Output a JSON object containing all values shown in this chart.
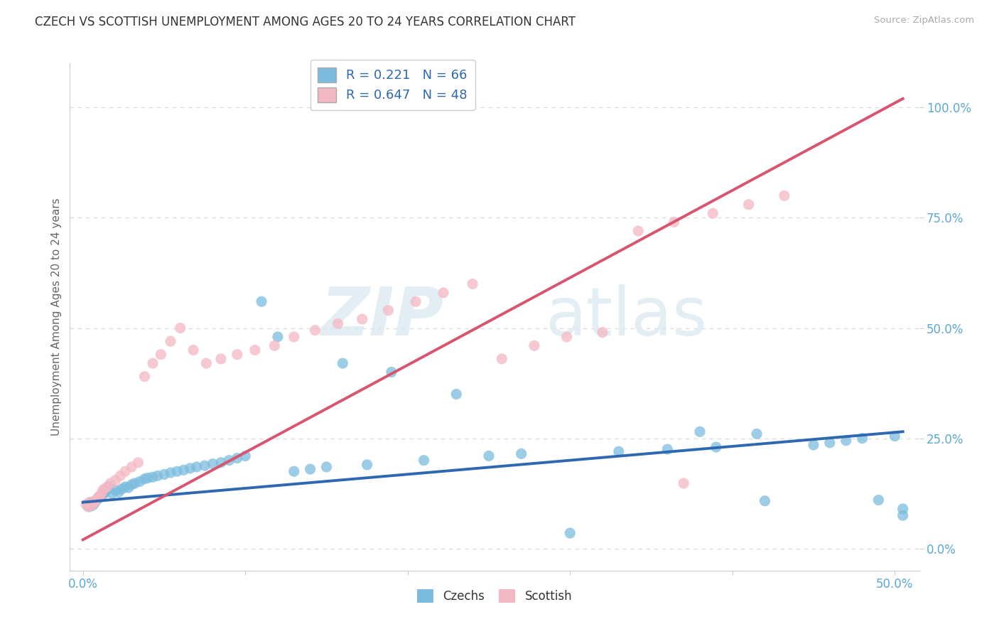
{
  "title": "CZECH VS SCOTTISH UNEMPLOYMENT AMONG AGES 20 TO 24 YEARS CORRELATION CHART",
  "source": "Source: ZipAtlas.com",
  "ylabel": "Unemployment Among Ages 20 to 24 years",
  "xlim": [
    -0.008,
    0.515
  ],
  "ylim": [
    -0.05,
    1.1
  ],
  "ytick_vals": [
    0.0,
    0.25,
    0.5,
    0.75,
    1.0
  ],
  "ytick_labels": [
    "0.0%",
    "25.0%",
    "50.0%",
    "75.0%",
    "100.0%"
  ],
  "xtick_vals": [
    0.0,
    0.1,
    0.2,
    0.3,
    0.4,
    0.5
  ],
  "xtick_labels": [
    "0.0%",
    "",
    "",
    "",
    "",
    "50.0%"
  ],
  "czech_color": "#7bbcde",
  "scottish_color": "#f4b8c4",
  "czech_line_color": "#2d68b0",
  "scottish_line_color": "#d9546e",
  "czech_R": 0.221,
  "czech_N": 66,
  "scottish_R": 0.647,
  "scottish_N": 48,
  "legend_label_czech": "Czechs",
  "legend_label_scottish": "Scottish",
  "watermark_zip": "ZIP",
  "watermark_atlas": "atlas",
  "background_color": "#ffffff",
  "grid_color": "#dddddd",
  "title_color": "#333333",
  "axis_label_color": "#666666",
  "tick_label_color": "#5ba8d4",
  "legend_text_color": "#2d68b0",
  "bottom_legend_text_color": "#333333",
  "czech_trend_x": [
    0.0,
    0.505
  ],
  "czech_trend_y": [
    0.105,
    0.265
  ],
  "scottish_trend_x": [
    0.0,
    0.505
  ],
  "scottish_trend_y": [
    0.02,
    1.02
  ],
  "czech_x": [
    0.003,
    0.004,
    0.005,
    0.006,
    0.007,
    0.008,
    0.009,
    0.01,
    0.011,
    0.012,
    0.013,
    0.014,
    0.015,
    0.016,
    0.018,
    0.02,
    0.022,
    0.024,
    0.026,
    0.028,
    0.03,
    0.032,
    0.035,
    0.038,
    0.04,
    0.043,
    0.046,
    0.05,
    0.054,
    0.058,
    0.062,
    0.066,
    0.07,
    0.075,
    0.08,
    0.085,
    0.09,
    0.095,
    0.1,
    0.11,
    0.12,
    0.13,
    0.14,
    0.15,
    0.16,
    0.175,
    0.19,
    0.21,
    0.23,
    0.25,
    0.27,
    0.3,
    0.33,
    0.36,
    0.39,
    0.42,
    0.45,
    0.46,
    0.47,
    0.48,
    0.49,
    0.5,
    0.505,
    0.505,
    0.415,
    0.38
  ],
  "czech_y": [
    0.1,
    0.095,
    0.105,
    0.098,
    0.102,
    0.108,
    0.112,
    0.115,
    0.118,
    0.122,
    0.125,
    0.13,
    0.135,
    0.14,
    0.125,
    0.132,
    0.128,
    0.135,
    0.14,
    0.138,
    0.145,
    0.148,
    0.152,
    0.158,
    0.16,
    0.162,
    0.165,
    0.168,
    0.172,
    0.175,
    0.178,
    0.182,
    0.185,
    0.188,
    0.192,
    0.195,
    0.2,
    0.205,
    0.21,
    0.56,
    0.48,
    0.175,
    0.18,
    0.185,
    0.42,
    0.19,
    0.4,
    0.2,
    0.35,
    0.21,
    0.215,
    0.035,
    0.22,
    0.225,
    0.23,
    0.108,
    0.235,
    0.24,
    0.245,
    0.25,
    0.11,
    0.255,
    0.075,
    0.09,
    0.26,
    0.265
  ],
  "scottish_x": [
    0.002,
    0.003,
    0.004,
    0.005,
    0.006,
    0.007,
    0.008,
    0.009,
    0.01,
    0.011,
    0.012,
    0.013,
    0.015,
    0.017,
    0.02,
    0.023,
    0.026,
    0.03,
    0.034,
    0.038,
    0.043,
    0.048,
    0.054,
    0.06,
    0.068,
    0.076,
    0.085,
    0.095,
    0.106,
    0.118,
    0.13,
    0.143,
    0.157,
    0.172,
    0.188,
    0.205,
    0.222,
    0.24,
    0.258,
    0.278,
    0.298,
    0.32,
    0.342,
    0.364,
    0.388,
    0.41,
    0.432,
    0.37
  ],
  "scottish_y": [
    0.1,
    0.095,
    0.105,
    0.098,
    0.1,
    0.105,
    0.11,
    0.115,
    0.118,
    0.122,
    0.13,
    0.135,
    0.14,
    0.148,
    0.155,
    0.165,
    0.175,
    0.185,
    0.195,
    0.39,
    0.42,
    0.44,
    0.47,
    0.5,
    0.45,
    0.42,
    0.43,
    0.44,
    0.45,
    0.46,
    0.48,
    0.495,
    0.51,
    0.52,
    0.54,
    0.56,
    0.58,
    0.6,
    0.43,
    0.46,
    0.48,
    0.49,
    0.72,
    0.74,
    0.76,
    0.78,
    0.8,
    0.148
  ]
}
